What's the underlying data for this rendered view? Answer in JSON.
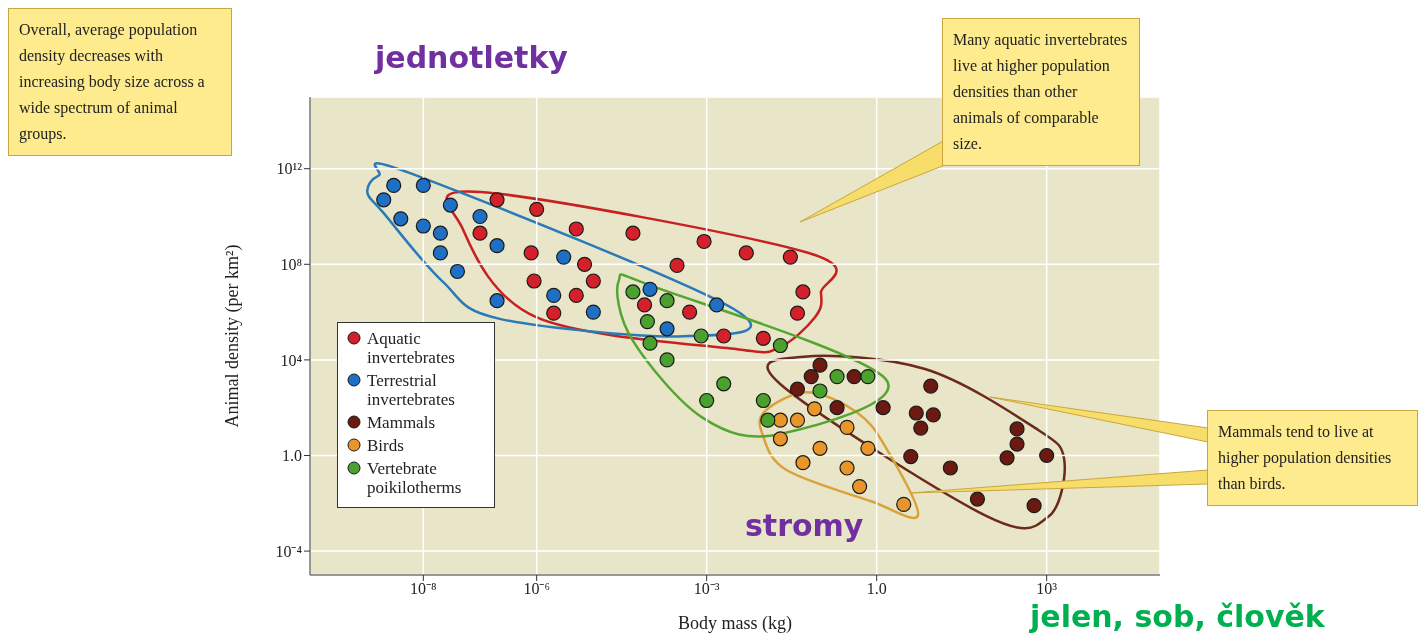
{
  "chart_data": {
    "type": "scatter",
    "xlabel": "Body mass (kg)",
    "ylabel": "Animal density (per km²)",
    "xlim": [
      1e-10,
      100000.0
    ],
    "ylim": [
      1e-05,
      1000000000000000.0
    ],
    "xticks": [
      {
        "value": 1e-08,
        "label": "10⁻⁸"
      },
      {
        "value": 1e-06,
        "label": "10⁻⁶"
      },
      {
        "value": 0.001,
        "label": "10⁻³"
      },
      {
        "value": 1,
        "label": "1.0"
      },
      {
        "value": 1000.0,
        "label": "10³"
      }
    ],
    "yticks": [
      {
        "value": 0.0001,
        "label": "10⁻⁴"
      },
      {
        "value": 1,
        "label": "1.0"
      },
      {
        "value": 10000.0,
        "label": "10⁴"
      },
      {
        "value": 100000000.0,
        "label": "10⁸"
      },
      {
        "value": 1000000000000.0,
        "label": "10¹²"
      }
    ],
    "log": "xy",
    "grid": true,
    "legend": "bottom left",
    "marker": "circle",
    "series": [
      {
        "name": "Aquatic invertebrates",
        "color": "#d4202a",
        "x": [
          2e-07,
          1e-06,
          5e-06,
          5e-05,
          1e-07,
          8e-07,
          7e-06,
          0.0003,
          9e-07,
          1e-05,
          5e-06,
          2e-06,
          8e-05,
          0.0009,
          0.005,
          0.03,
          0.05,
          0.0005,
          0.04,
          0.002,
          0.01
        ],
        "values": [
          50000000000.0,
          20000000000.0,
          3000000000.0,
          2000000000.0,
          2000000000.0,
          300000000.0,
          100000000.0,
          90000000.0,
          20000000.0,
          20000000.0,
          5000000.0,
          900000.0,
          2000000.0,
          900000000.0,
          300000000.0,
          200000000.0,
          7000000.0,
          1000000.0,
          900000.0,
          100000.0,
          80000.0
        ]
      },
      {
        "name": "Terrestrial invertebrates",
        "color": "#1f6fc4",
        "x": [
          2e-09,
          3e-09,
          1e-08,
          4e-09,
          3e-08,
          1e-08,
          2e-08,
          2e-08,
          4e-08,
          1e-07,
          2e-07,
          2e-07,
          3e-06,
          2e-06,
          1e-05,
          0.0001,
          0.0002,
          0.0015
        ],
        "values": [
          50000000000.0,
          200000000000.0,
          200000000000.0,
          8000000000.0,
          30000000000.0,
          4000000000.0,
          2000000000.0,
          300000000.0,
          50000000.0,
          10000000000.0,
          600000000.0,
          3000000.0,
          200000000.0,
          5000000.0,
          1000000.0,
          9000000.0,
          200000.0,
          2000000.0
        ]
      },
      {
        "name": "Mammals",
        "color": "#6b1a12",
        "x": [
          0.1,
          0.07,
          0.4,
          0.04,
          0.2,
          1.3,
          9,
          5,
          10,
          6,
          300,
          300,
          200,
          1000,
          4,
          20,
          60,
          600
        ],
        "values": [
          6000.0,
          2000.0,
          2000.0,
          600.0,
          100.0,
          100.0,
          800.0,
          60,
          50,
          14,
          13,
          3,
          0.8,
          1,
          0.9,
          0.3,
          0.015,
          0.008
        ]
      },
      {
        "name": "Birds",
        "color": "#e8962a",
        "x": [
          0.08,
          0.02,
          0.04,
          0.3,
          0.02,
          0.1,
          0.7,
          0.05,
          0.3,
          0.5,
          3
        ],
        "values": [
          90,
          30,
          30,
          15,
          5,
          2,
          2,
          0.5,
          0.3,
          0.05,
          0.009
        ]
      },
      {
        "name": "Vertebrate poikilotherms",
        "color": "#4aa12d",
        "x": [
          5e-05,
          0.0002,
          9e-05,
          0.0001,
          0.0002,
          0.0008,
          0.02,
          0.002,
          0.001,
          0.01,
          0.012,
          0.2,
          0.7,
          0.1
        ],
        "values": [
          7000000.0,
          3000000.0,
          400000.0,
          50000.0,
          10000.0,
          100000.0,
          40000.0,
          1000.0,
          200.0,
          200.0,
          30,
          2000.0,
          2000.0,
          500.0
        ]
      }
    ],
    "annotations": [
      "Overall, average population density decreases with increasing body size across a wide spectrum of animal groups.",
      "Many aquatic invertebrates live at higher population densities than other animals of comparable size.",
      "Mammals tend to live at higher population densities than birds.",
      "jednotletky",
      "stromy",
      "jelen, sob, člověk"
    ]
  }
}
